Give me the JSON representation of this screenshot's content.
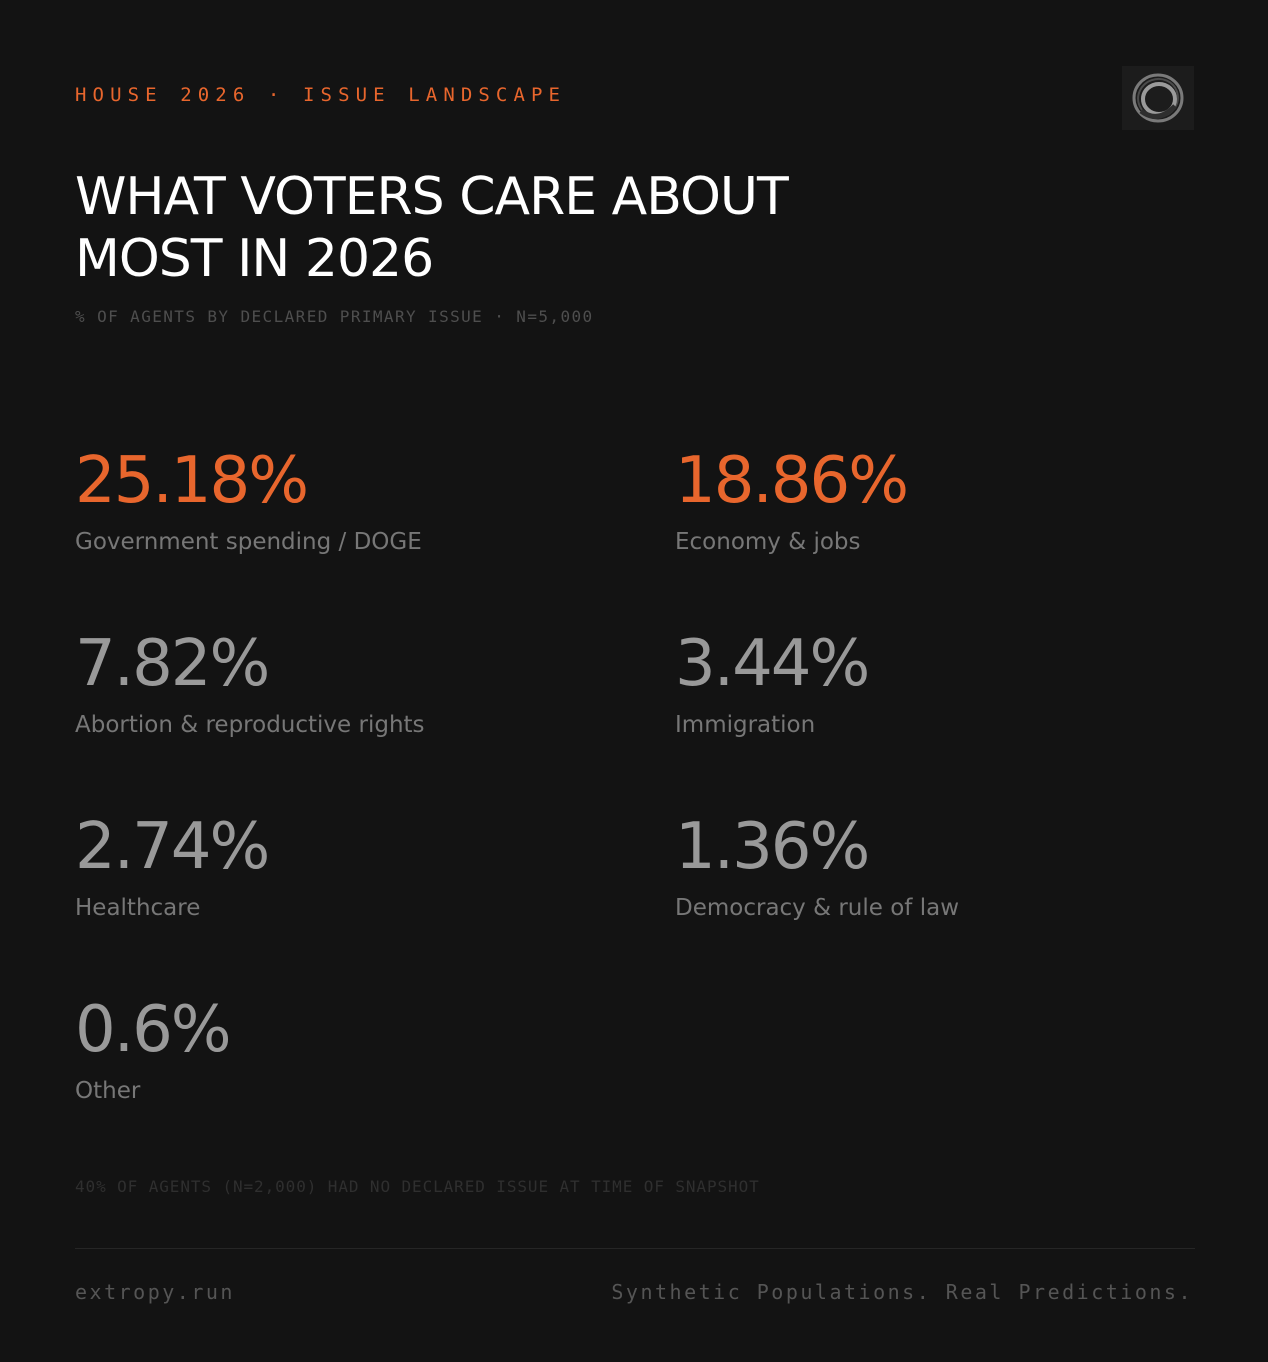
{
  "header": {
    "eyebrow": "HOUSE 2026 · ISSUE LANDSCAPE",
    "logo_icon": "ring-logo-icon"
  },
  "colors": {
    "accent": "#e8662d",
    "background": "#131313",
    "muted_value": "#999999",
    "label": "#777777"
  },
  "chart_data": {
    "type": "table",
    "title": "WHAT VOTERS CARE ABOUT MOST IN 2026",
    "subtitle": "% OF AGENTS BY DECLARED PRIMARY ISSUE · N=5,000",
    "stats": [
      {
        "value": "25.18%",
        "number": 25.18,
        "label": "Government spending / DOGE",
        "highlight": true
      },
      {
        "value": "18.86%",
        "number": 18.86,
        "label": "Economy & jobs",
        "highlight": true
      },
      {
        "value": "7.82%",
        "number": 7.82,
        "label": "Abortion & reproductive rights",
        "highlight": false
      },
      {
        "value": "3.44%",
        "number": 3.44,
        "label": "Immigration",
        "highlight": false
      },
      {
        "value": "2.74%",
        "number": 2.74,
        "label": "Healthcare",
        "highlight": false
      },
      {
        "value": "1.36%",
        "number": 1.36,
        "label": "Democracy & rule of law",
        "highlight": false
      },
      {
        "value": "0.6%",
        "number": 0.6,
        "label": "Other",
        "highlight": false
      }
    ],
    "footnote": "40% OF AGENTS (N=2,000) HAD NO DECLARED ISSUE AT TIME OF SNAPSHOT"
  },
  "footer": {
    "site": "extropy.run",
    "tagline": "Synthetic Populations. Real Predictions."
  }
}
